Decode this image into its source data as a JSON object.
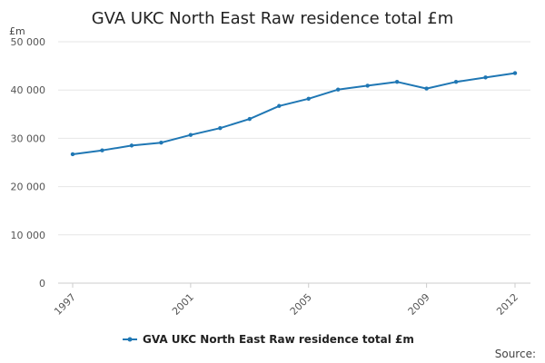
{
  "chart_data": {
    "type": "line",
    "title": "GVA UKC North East Raw residence total £m",
    "y_unit": "£m",
    "xlabel": "",
    "ylabel": "",
    "x": [
      1997,
      1998,
      1999,
      2000,
      2001,
      2002,
      2003,
      2004,
      2005,
      2006,
      2007,
      2008,
      2009,
      2010,
      2011,
      2012
    ],
    "series": [
      {
        "name": "GVA UKC North East Raw residence total £m",
        "values": [
          26700,
          27500,
          28500,
          29100,
          30700,
          32100,
          34000,
          36700,
          38200,
          40100,
          40900,
          41700,
          40300,
          41700,
          42600,
          43500
        ]
      }
    ],
    "ylim": [
      0,
      50000
    ],
    "y_ticks": [
      0,
      10000,
      20000,
      30000,
      40000,
      50000
    ],
    "y_tick_labels": [
      "0",
      "10 000",
      "20 000",
      "30 000",
      "40 000",
      "50 000"
    ],
    "x_ticks": [
      1997,
      2001,
      2005,
      2009,
      2012
    ],
    "x_tick_labels": [
      "1997",
      "2001",
      "2005",
      "2009",
      "2012"
    ],
    "grid": true,
    "legend_position": "bottom-center",
    "line_color": "#1f77b4",
    "source_label": "Source:"
  }
}
